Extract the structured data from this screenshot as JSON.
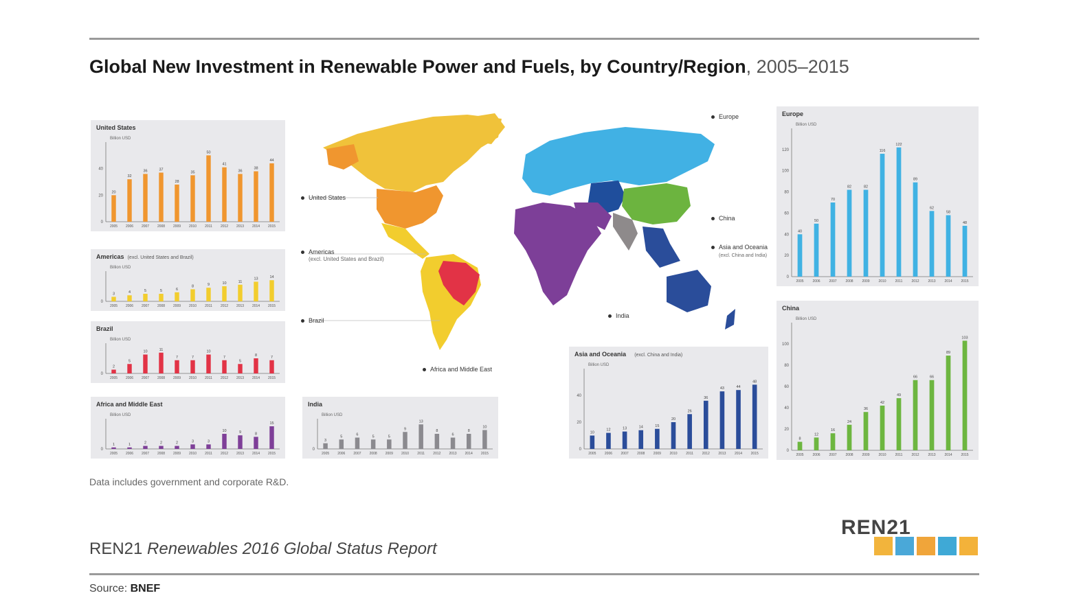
{
  "title": {
    "bold": "Global New Investment in Renewable Power and Fuels, by Country/Region",
    "years": ", 2005–2015"
  },
  "note": "Data includes government and corporate R&D.",
  "report": {
    "org": "REN21",
    "title": "Renewables 2016 Global Status Report"
  },
  "source": {
    "label": "Source:",
    "value": "BNEF"
  },
  "logo": {
    "text": "REN21"
  },
  "map_labels": {
    "united_states": "United States",
    "americas": "Americas",
    "americas_sub": "(excl. United States and Brazil)",
    "brazil": "Brazil",
    "europe": "Europe",
    "china": "China",
    "asia_oceania": "Asia and Oceania",
    "asia_oceania_sub": "(excl. China and India)",
    "india": "India",
    "africa_me": "Africa and Middle East"
  },
  "colors": {
    "united_states": "#f0962f",
    "americas": "#f2cd2e",
    "brazil": "#e23346",
    "africa_me": "#7e3f98",
    "india": "#8b8a8f",
    "asia_oceania": "#2b4d9a",
    "europe": "#40b2e3",
    "china": "#6db640",
    "map_canada": "#f0c23a",
    "map_russia": "#41b1e4",
    "map_centralasia": "#1f4e9c",
    "map_china": "#6cb43f",
    "map_africa": "#7d3f98",
    "map_india": "#8e8a8b",
    "map_seasia": "#2a4d9a"
  },
  "chart_data": [
    {
      "id": "united_states",
      "type": "bar",
      "title": "United States",
      "unit": "Billion USD",
      "categories": [
        "2005",
        "2006",
        "2007",
        "2008",
        "2009",
        "2010",
        "2011",
        "2012",
        "2013",
        "2014",
        "2015"
      ],
      "values": [
        20,
        32,
        36,
        37,
        28,
        35,
        50,
        41,
        36,
        38,
        44
      ],
      "ylim": [
        0,
        60
      ],
      "yticks": [
        0,
        20,
        40
      ]
    },
    {
      "id": "americas",
      "type": "bar",
      "title": "Americas",
      "subtitle": "(excl. United States and Brazil)",
      "unit": "Billion USD",
      "categories": [
        "2005",
        "2006",
        "2007",
        "2008",
        "2009",
        "2010",
        "2011",
        "2012",
        "2013",
        "2014",
        "2015"
      ],
      "values": [
        3,
        4,
        5,
        5,
        6,
        8,
        9,
        10,
        11,
        13,
        14
      ],
      "ylim": [
        0,
        20
      ],
      "yticks": [
        0
      ]
    },
    {
      "id": "brazil",
      "type": "bar",
      "title": "Brazil",
      "unit": "Billion USD",
      "categories": [
        "2005",
        "2006",
        "2007",
        "2008",
        "2009",
        "2010",
        "2011",
        "2012",
        "2013",
        "2014",
        "2015"
      ],
      "values": [
        2,
        5,
        10,
        11,
        7,
        7,
        10,
        7,
        5,
        8,
        7
      ],
      "ylim": [
        0,
        16
      ],
      "yticks": [
        0
      ]
    },
    {
      "id": "africa_me",
      "type": "bar",
      "title": "Africa and Middle East",
      "unit": "Billion USD",
      "categories": [
        "2005",
        "2006",
        "2007",
        "2008",
        "2009",
        "2010",
        "2011",
        "2012",
        "2013",
        "2014",
        "2015"
      ],
      "values": [
        1,
        1,
        2,
        2,
        2,
        3,
        3,
        10,
        9,
        8,
        15
      ],
      "ylim": [
        0,
        20
      ],
      "yticks": [
        0
      ]
    },
    {
      "id": "india",
      "type": "bar",
      "title": "India",
      "unit": "Billion USD",
      "categories": [
        "2005",
        "2006",
        "2007",
        "2008",
        "2009",
        "2010",
        "2011",
        "2012",
        "2013",
        "2014",
        "2015"
      ],
      "values": [
        3,
        5,
        6,
        5,
        5,
        9,
        13,
        8,
        6,
        8,
        10
      ],
      "ylim": [
        0,
        16
      ],
      "yticks": [
        0
      ]
    },
    {
      "id": "asia_oceania",
      "type": "bar",
      "title": "Asia and Oceania",
      "subtitle": "(excl. China and India)",
      "unit": "Billion USD",
      "categories": [
        "2005",
        "2006",
        "2007",
        "2008",
        "2009",
        "2010",
        "2011",
        "2012",
        "2013",
        "2014",
        "2015"
      ],
      "values": [
        10,
        12,
        13,
        14,
        15,
        20,
        26,
        36,
        43,
        44,
        48
      ],
      "ylim": [
        0,
        60
      ],
      "yticks": [
        0,
        20,
        40
      ]
    },
    {
      "id": "europe",
      "type": "bar",
      "title": "Europe",
      "unit": "Billion USD",
      "categories": [
        "2005",
        "2006",
        "2007",
        "2008",
        "2009",
        "2010",
        "2011",
        "2012",
        "2013",
        "2014",
        "2015"
      ],
      "values": [
        40,
        50,
        70,
        82,
        82,
        116,
        122,
        89,
        62,
        58,
        48
      ],
      "ylim": [
        0,
        140
      ],
      "yticks": [
        0,
        20,
        40,
        60,
        80,
        100,
        120
      ]
    },
    {
      "id": "china",
      "type": "bar",
      "title": "China",
      "unit": "Billion USD",
      "categories": [
        "2005",
        "2006",
        "2007",
        "2008",
        "2009",
        "2010",
        "2011",
        "2012",
        "2013",
        "2014",
        "2015"
      ],
      "values": [
        8,
        12,
        16,
        24,
        36,
        42,
        49,
        66,
        66,
        89,
        103
      ],
      "ylim": [
        0,
        120
      ],
      "yticks": [
        0,
        20,
        40,
        60,
        80,
        100
      ]
    }
  ]
}
